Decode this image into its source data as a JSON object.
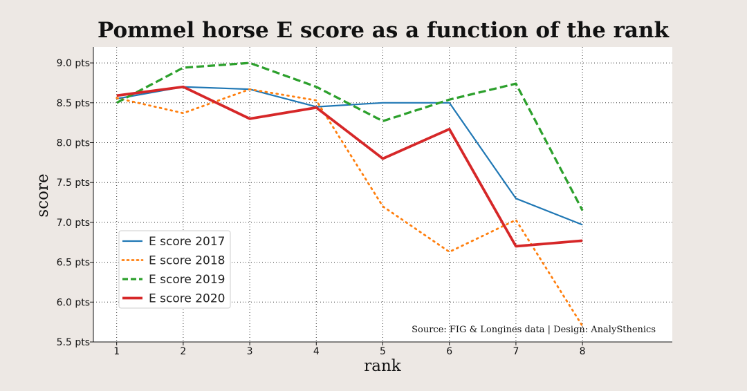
{
  "chart_data": {
    "type": "line",
    "title": "Pommel horse E score as a function of the rank",
    "xlabel": "rank",
    "ylabel": "score",
    "x": [
      1,
      2,
      3,
      4,
      5,
      6,
      7,
      8
    ],
    "x_tick_labels": [
      "1",
      "2",
      "3",
      "4",
      "5",
      "6",
      "7",
      "8"
    ],
    "xlim": [
      0.65,
      9.35
    ],
    "ylim": [
      5.5,
      9.2
    ],
    "y_ticks": [
      5.5,
      6.0,
      6.5,
      7.0,
      7.5,
      8.0,
      8.5,
      9.0
    ],
    "y_tick_labels": [
      "5.5 pts",
      "6.0 pts",
      "6.5 pts",
      "7.0 pts",
      "7.5 pts",
      "8.0 pts",
      "8.5 pts",
      "9.0 pts"
    ],
    "grid": true,
    "legend_position": "lower-left",
    "series": [
      {
        "name": "E score 2017",
        "values": [
          8.55,
          8.7,
          8.67,
          8.45,
          8.5,
          8.5,
          7.3,
          6.97
        ],
        "color": "#1f77b4",
        "style": "solid",
        "width": 2.2
      },
      {
        "name": "E score 2018",
        "values": [
          8.56,
          8.37,
          8.67,
          8.53,
          7.2,
          6.63,
          7.03,
          5.7
        ],
        "color": "#ff7f0e",
        "style": "dotted",
        "width": 2.8
      },
      {
        "name": "E score 2019",
        "values": [
          8.5,
          8.94,
          9.0,
          8.7,
          8.27,
          8.54,
          8.74,
          7.15
        ],
        "color": "#2ca02c",
        "style": "dashed",
        "width": 3.3
      },
      {
        "name": "E score 2020",
        "values": [
          8.59,
          8.7,
          8.3,
          8.44,
          7.8,
          8.17,
          6.7,
          6.77
        ],
        "color": "#d62728",
        "style": "solid",
        "width": 3.8
      }
    ],
    "annotation": "Source: FIG & Longines data  |  Design: AnalySthenics"
  }
}
